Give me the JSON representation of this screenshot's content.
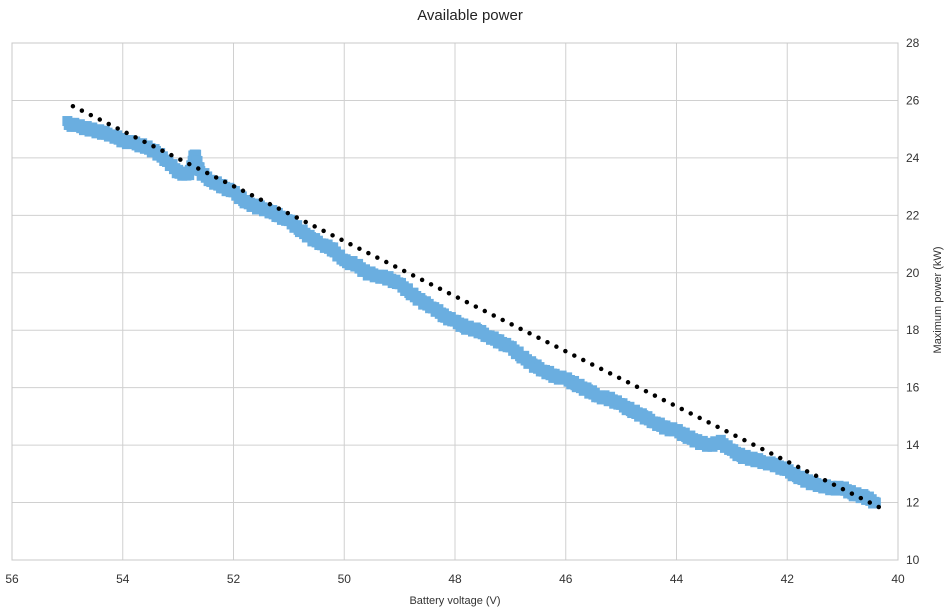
{
  "chart_data": {
    "type": "scatter",
    "title": "Available power",
    "xlabel": "Battery voltage (V)",
    "ylabel": "Maximum power (kW)",
    "x_reversed": true,
    "xlim": [
      56,
      40
    ],
    "ylim": [
      10,
      28
    ],
    "x_ticks": [
      "56",
      "54",
      "52",
      "50",
      "48",
      "46",
      "44",
      "42",
      "40"
    ],
    "y_ticks": [
      "10",
      "12",
      "14",
      "16",
      "18",
      "20",
      "22",
      "24",
      "26",
      "28"
    ],
    "y_axis_side": "right",
    "grid": true,
    "legend": "none",
    "series": [
      {
        "color": "#6aaee0",
        "marker": "square",
        "points": [
          [
            55.0,
            25.2
          ],
          [
            54.8,
            25.1
          ],
          [
            54.6,
            25.0
          ],
          [
            54.4,
            24.9
          ],
          [
            54.2,
            24.8
          ],
          [
            54.0,
            24.6
          ],
          [
            53.8,
            24.5
          ],
          [
            53.6,
            24.4
          ],
          [
            53.4,
            24.2
          ],
          [
            53.2,
            23.9
          ],
          [
            53.0,
            23.5
          ],
          [
            52.8,
            23.4
          ],
          [
            52.7,
            24.2
          ],
          [
            52.6,
            23.5
          ],
          [
            52.4,
            23.2
          ],
          [
            52.2,
            23.0
          ],
          [
            52.0,
            22.8
          ],
          [
            51.8,
            22.5
          ],
          [
            51.6,
            22.3
          ],
          [
            51.4,
            22.2
          ],
          [
            51.2,
            22.0
          ],
          [
            51.0,
            21.8
          ],
          [
            50.8,
            21.5
          ],
          [
            50.6,
            21.2
          ],
          [
            50.4,
            21.0
          ],
          [
            50.2,
            20.8
          ],
          [
            50.0,
            20.4
          ],
          [
            49.8,
            20.3
          ],
          [
            49.6,
            20.0
          ],
          [
            49.4,
            19.9
          ],
          [
            49.2,
            19.8
          ],
          [
            49.0,
            19.6
          ],
          [
            48.8,
            19.3
          ],
          [
            48.6,
            19.0
          ],
          [
            48.4,
            18.8
          ],
          [
            48.2,
            18.5
          ],
          [
            48.0,
            18.3
          ],
          [
            47.8,
            18.1
          ],
          [
            47.6,
            18.0
          ],
          [
            47.4,
            17.8
          ],
          [
            47.2,
            17.6
          ],
          [
            47.0,
            17.4
          ],
          [
            46.8,
            17.1
          ],
          [
            46.6,
            16.8
          ],
          [
            46.4,
            16.6
          ],
          [
            46.2,
            16.4
          ],
          [
            46.0,
            16.3
          ],
          [
            45.8,
            16.1
          ],
          [
            45.6,
            15.9
          ],
          [
            45.4,
            15.7
          ],
          [
            45.2,
            15.6
          ],
          [
            45.0,
            15.4
          ],
          [
            44.8,
            15.2
          ],
          [
            44.6,
            15.0
          ],
          [
            44.4,
            14.8
          ],
          [
            44.2,
            14.6
          ],
          [
            44.0,
            14.5
          ],
          [
            43.8,
            14.3
          ],
          [
            43.6,
            14.1
          ],
          [
            43.4,
            14.0
          ],
          [
            43.2,
            14.1
          ],
          [
            43.0,
            13.8
          ],
          [
            42.8,
            13.6
          ],
          [
            42.6,
            13.5
          ],
          [
            42.4,
            13.4
          ],
          [
            42.2,
            13.3
          ],
          [
            42.0,
            13.1
          ],
          [
            41.8,
            12.9
          ],
          [
            41.6,
            12.7
          ],
          [
            41.4,
            12.6
          ],
          [
            41.2,
            12.5
          ],
          [
            41.0,
            12.5
          ],
          [
            40.8,
            12.3
          ],
          [
            40.6,
            12.2
          ],
          [
            40.4,
            12.0
          ]
        ]
      },
      {
        "type": "trendline",
        "style": "dotted",
        "color": "#000000",
        "points": [
          [
            54.9,
            25.8
          ],
          [
            40.3,
            11.8
          ]
        ]
      }
    ]
  }
}
